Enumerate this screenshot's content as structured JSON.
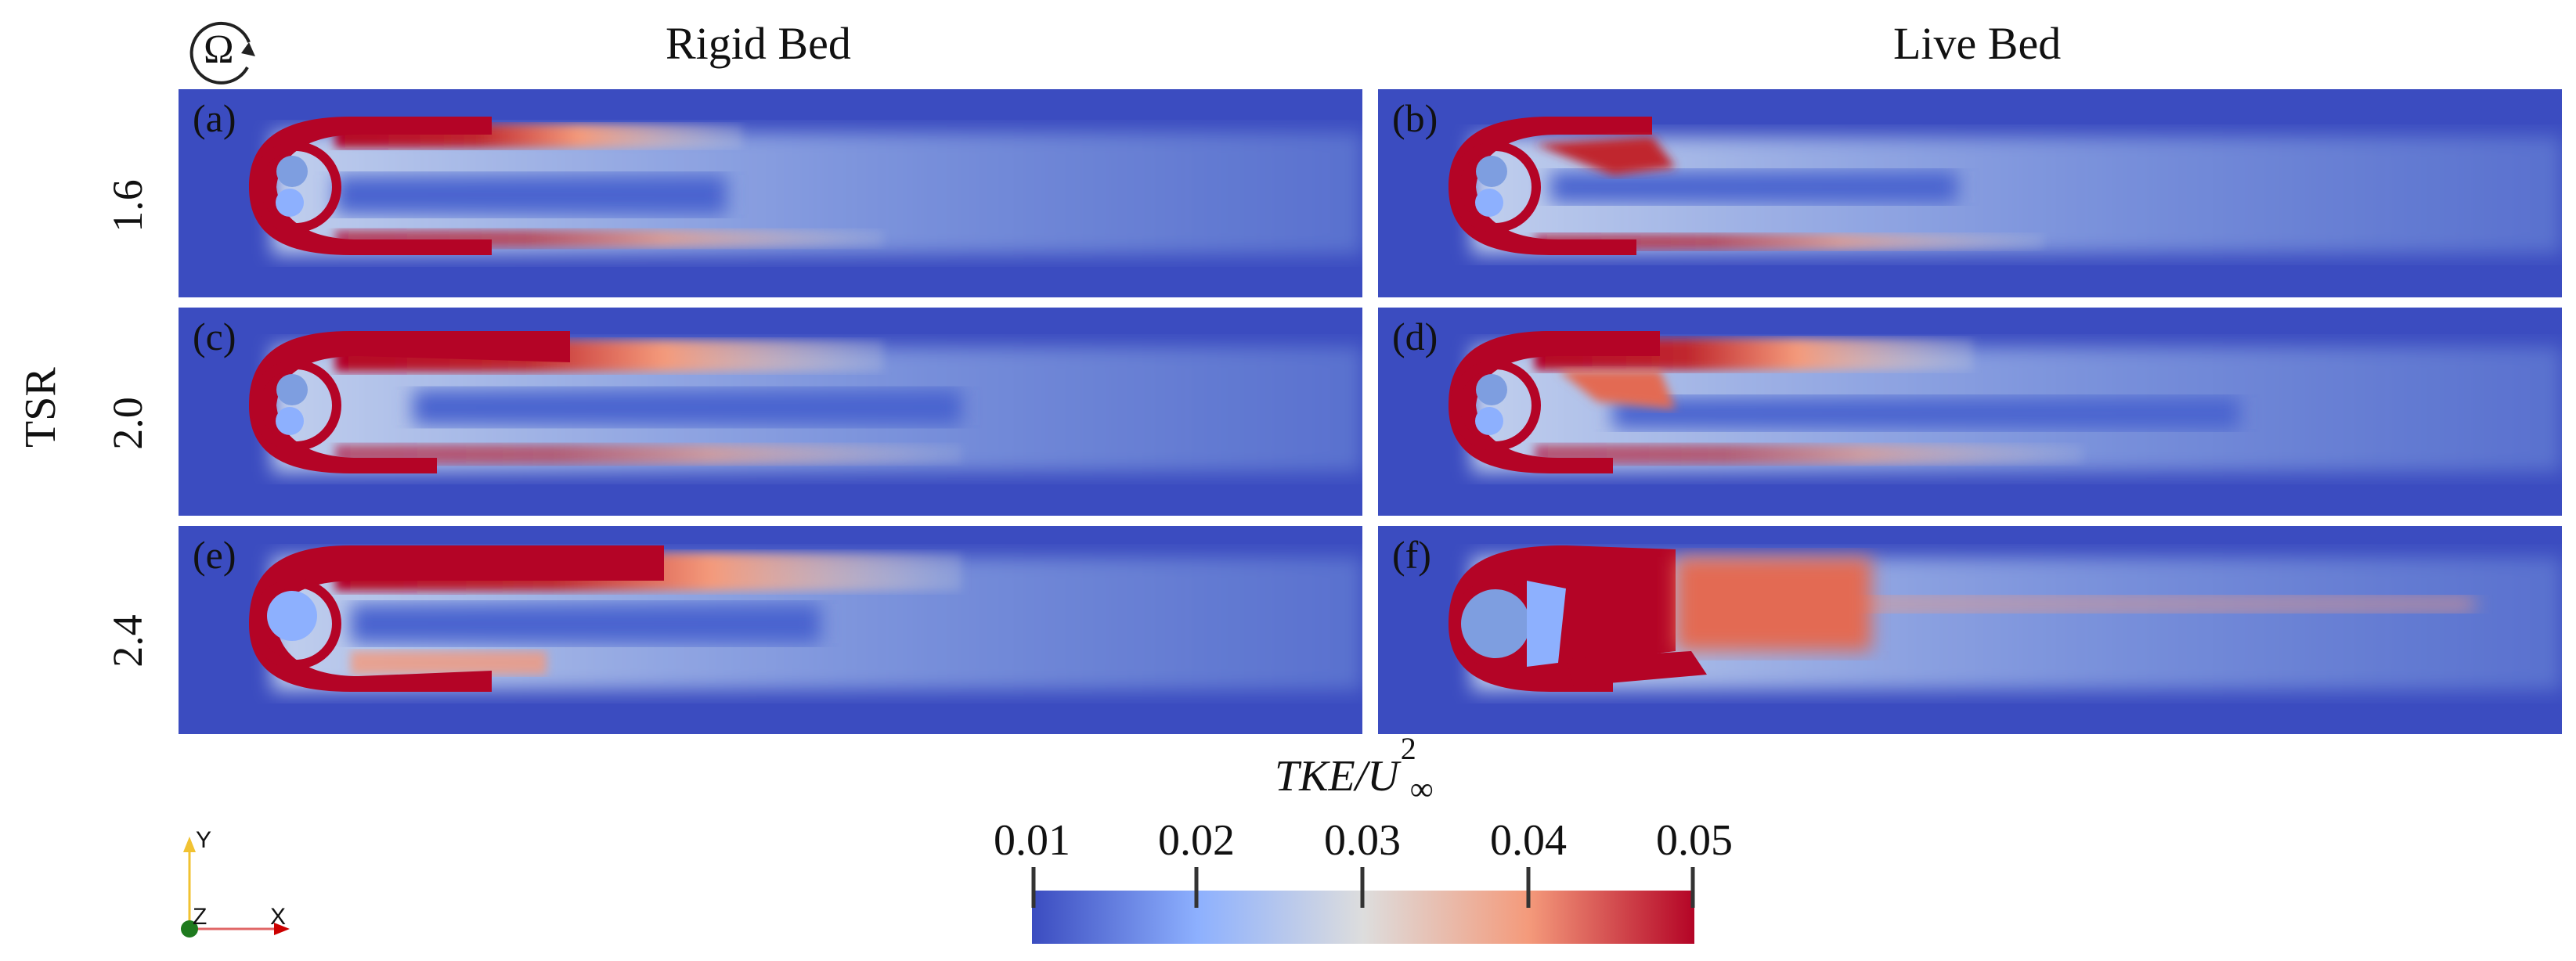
{
  "columns": {
    "left": "Rigid Bed",
    "right": "Live Bed"
  },
  "rows": [
    "1.6",
    "2.0",
    "2.4"
  ],
  "row_axis_label": "TSR",
  "panels": [
    "(a)",
    "(b)",
    "(c)",
    "(d)",
    "(e)",
    "(f)"
  ],
  "rotation_symbol": "Ω",
  "colorbar": {
    "label_main": "TKE/U",
    "label_sub": "∞",
    "label_sup": "2",
    "ticks": [
      "0.01",
      "0.02",
      "0.03",
      "0.04",
      "0.05"
    ],
    "colors": [
      "#3b4cc0",
      "#8db0fe",
      "#dddddd",
      "#f49a7b",
      "#b40426"
    ]
  },
  "axes": {
    "y": "Y",
    "z": "Z",
    "x": "X"
  }
}
